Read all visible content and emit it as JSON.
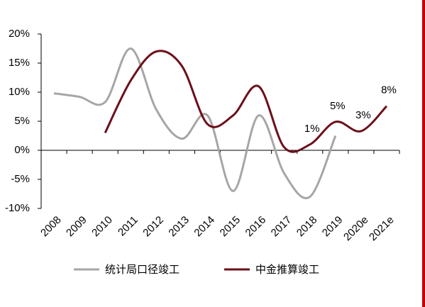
{
  "chart_data": {
    "type": "line",
    "categories": [
      "2008",
      "2009",
      "2010",
      "2011",
      "2012",
      "2013",
      "2014",
      "2015",
      "2016",
      "2017",
      "2018",
      "2019",
      "2020e",
      "2021e"
    ],
    "series": [
      {
        "name": "统计局口径竣工",
        "color": "#a6a6a6",
        "values": [
          9.8,
          9.2,
          8.3,
          17.5,
          7,
          2,
          6,
          -7,
          6,
          -4,
          -8,
          2.5,
          null,
          null
        ]
      },
      {
        "name": "中金推算竣工",
        "color": "#6b0f1a",
        "values": [
          null,
          null,
          3,
          12,
          17,
          14.5,
          4.5,
          6,
          11,
          0.5,
          1,
          4.9,
          3.3,
          7.6
        ],
        "value_labels": [
          null,
          null,
          null,
          null,
          null,
          null,
          null,
          null,
          null,
          null,
          "1%",
          "5%",
          "3%",
          "8%"
        ]
      }
    ],
    "ylim": [
      -10,
      20
    ],
    "yticks": [
      {
        "value": -10,
        "label": "-10%"
      },
      {
        "value": -5,
        "label": "-5%"
      },
      {
        "value": 0,
        "label": "0%"
      },
      {
        "value": 5,
        "label": "5%"
      },
      {
        "value": 10,
        "label": "10%"
      },
      {
        "value": 15,
        "label": "15%"
      },
      {
        "value": 20,
        "label": "20%"
      }
    ],
    "legend": "bottom"
  }
}
